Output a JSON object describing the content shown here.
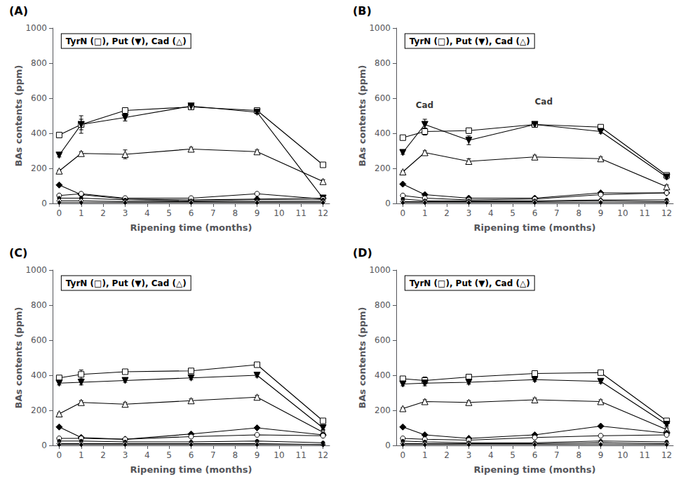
{
  "chart_data": [
    {
      "type": "line",
      "title": "(A)",
      "xlabel": "Ripening time (months)",
      "ylabel": "BAs contents (ppm)",
      "color": "#000000",
      "grid": false,
      "xlim": [
        -0.3,
        12.3
      ],
      "xticks": [
        0,
        1,
        2,
        3,
        4,
        5,
        6,
        7,
        8,
        9,
        10,
        11,
        12
      ],
      "ylim": [
        0,
        1000
      ],
      "yticks": [
        0,
        200,
        400,
        600,
        800,
        1000
      ],
      "x": [
        0,
        1,
        3,
        6,
        9,
        12
      ],
      "series": [
        {
          "marker": "square-open",
          "values": [
            390,
            450,
            530,
            550,
            530,
            220
          ],
          "errors": [
            10,
            30,
            15,
            10,
            10,
            10
          ]
        },
        {
          "marker": "triangle-down",
          "values": [
            275,
            450,
            490,
            555,
            520,
            30
          ],
          "errors": [
            10,
            50,
            20,
            10,
            10,
            5
          ]
        },
        {
          "marker": "triangle-open",
          "values": [
            185,
            285,
            280,
            310,
            295,
            125
          ],
          "errors": [
            5,
            10,
            25,
            10,
            10,
            10
          ]
        },
        {
          "marker": "diamond",
          "values": [
            105,
            50,
            25,
            20,
            25,
            30
          ]
        },
        {
          "marker": "circle-open",
          "values": [
            45,
            55,
            30,
            30,
            55,
            25
          ]
        },
        {
          "marker": "circle",
          "values": [
            30,
            30,
            20,
            15,
            20,
            20
          ]
        },
        {
          "marker": "diamond-open",
          "values": [
            15,
            15,
            10,
            10,
            10,
            10
          ]
        },
        {
          "marker": "thin-diamond",
          "values": [
            5,
            5,
            5,
            5,
            5,
            5
          ]
        }
      ],
      "annotations": [
        {
          "text": "TyrN (□), Put (▼), Cad (△)"
        }
      ]
    },
    {
      "type": "line",
      "title": "(B)",
      "xlabel": "Ripening time (months)",
      "ylabel": "BAs contents (ppm)",
      "color": "#000000",
      "grid": false,
      "xlim": [
        -0.3,
        12.3
      ],
      "xticks": [
        0,
        1,
        2,
        3,
        4,
        5,
        6,
        7,
        8,
        9,
        10,
        11,
        12
      ],
      "ylim": [
        0,
        1000
      ],
      "yticks": [
        0,
        200,
        400,
        600,
        800,
        1000
      ],
      "x": [
        0,
        1,
        3,
        6,
        9,
        12
      ],
      "series": [
        {
          "marker": "square-open",
          "values": [
            375,
            410,
            415,
            450,
            435,
            160
          ],
          "errors": [
            10,
            20,
            15,
            10,
            10,
            10
          ]
        },
        {
          "marker": "triangle-down",
          "values": [
            290,
            450,
            360,
            450,
            410,
            150
          ],
          "errors": [
            10,
            30,
            25,
            10,
            10,
            10
          ]
        },
        {
          "marker": "triangle-open",
          "values": [
            180,
            290,
            240,
            265,
            255,
            95
          ],
          "errors": [
            5,
            10,
            15,
            10,
            10,
            10
          ]
        },
        {
          "marker": "diamond",
          "values": [
            110,
            50,
            30,
            30,
            60,
            60
          ]
        },
        {
          "marker": "circle-open",
          "values": [
            45,
            30,
            20,
            25,
            50,
            60
          ]
        },
        {
          "marker": "circle",
          "values": [
            25,
            15,
            15,
            15,
            20,
            20
          ]
        },
        {
          "marker": "diamond-open",
          "values": [
            10,
            10,
            10,
            10,
            15,
            10
          ]
        },
        {
          "marker": "thin-diamond",
          "values": [
            5,
            5,
            5,
            5,
            5,
            5
          ]
        }
      ],
      "annotations": [
        {
          "text": "TyrN (□), Put (▼), Cad (△)"
        },
        {
          "text": "Cad",
          "y": 580
        },
        {
          "text": "Cad",
          "y": 560
        }
      ]
    },
    {
      "type": "line",
      "title": "(C)",
      "xlabel": "Ripening time (months)",
      "ylabel": "BAs contents (ppm)",
      "color": "#000000",
      "grid": false,
      "xlim": [
        -0.3,
        12.3
      ],
      "xticks": [
        0,
        1,
        2,
        3,
        4,
        5,
        6,
        7,
        8,
        9,
        10,
        11,
        12
      ],
      "ylim": [
        0,
        1000
      ],
      "yticks": [
        0,
        200,
        400,
        600,
        800,
        1000
      ],
      "x": [
        0,
        1,
        3,
        6,
        9,
        12
      ],
      "series": [
        {
          "marker": "square-open",
          "values": [
            385,
            405,
            420,
            425,
            460,
            140
          ],
          "errors": [
            10,
            25,
            10,
            10,
            10,
            10
          ]
        },
        {
          "marker": "triangle-down",
          "values": [
            355,
            360,
            370,
            385,
            400,
            100
          ],
          "errors": [
            10,
            15,
            10,
            10,
            10,
            10
          ]
        },
        {
          "marker": "triangle-open",
          "values": [
            180,
            245,
            235,
            255,
            275,
            75
          ],
          "errors": [
            5,
            10,
            10,
            10,
            10,
            10
          ]
        },
        {
          "marker": "diamond",
          "values": [
            105,
            45,
            35,
            65,
            100,
            60
          ]
        },
        {
          "marker": "circle-open",
          "values": [
            40,
            40,
            35,
            50,
            60,
            55
          ]
        },
        {
          "marker": "circle",
          "values": [
            25,
            25,
            20,
            20,
            25,
            15
          ]
        },
        {
          "marker": "diamond-open",
          "values": [
            10,
            10,
            10,
            10,
            10,
            5
          ]
        },
        {
          "marker": "thin-diamond",
          "values": [
            5,
            5,
            5,
            5,
            5,
            5
          ]
        }
      ],
      "annotations": [
        {
          "text": "TyrN (□), Put (▼), Cad (△)"
        }
      ]
    },
    {
      "type": "line",
      "title": "(D)",
      "xlabel": "Ripening time (months)",
      "ylabel": "BAs contents (ppm)",
      "color": "#000000",
      "grid": false,
      "xlim": [
        -0.3,
        12.3
      ],
      "xticks": [
        0,
        1,
        2,
        3,
        4,
        5,
        6,
        7,
        8,
        9,
        10,
        11,
        12
      ],
      "ylim": [
        0,
        1000
      ],
      "yticks": [
        0,
        200,
        400,
        600,
        800,
        1000
      ],
      "x": [
        0,
        1,
        3,
        6,
        9,
        12
      ],
      "series": [
        {
          "marker": "square-open",
          "values": [
            380,
            370,
            390,
            410,
            415,
            140
          ],
          "errors": [
            10,
            20,
            10,
            10,
            10,
            10
          ]
        },
        {
          "marker": "triangle-down",
          "values": [
            350,
            355,
            360,
            375,
            365,
            120
          ],
          "errors": [
            10,
            15,
            10,
            10,
            10,
            10
          ]
        },
        {
          "marker": "triangle-open",
          "values": [
            210,
            250,
            245,
            260,
            250,
            90
          ],
          "errors": [
            5,
            10,
            10,
            10,
            10,
            10
          ]
        },
        {
          "marker": "diamond",
          "values": [
            105,
            60,
            40,
            60,
            110,
            70
          ]
        },
        {
          "marker": "circle-open",
          "values": [
            40,
            35,
            30,
            45,
            55,
            60
          ]
        },
        {
          "marker": "circle",
          "values": [
            25,
            20,
            15,
            15,
            25,
            20
          ]
        },
        {
          "marker": "diamond-open",
          "values": [
            10,
            10,
            10,
            10,
            15,
            10
          ]
        },
        {
          "marker": "thin-diamond",
          "values": [
            5,
            5,
            5,
            5,
            5,
            5
          ]
        }
      ],
      "annotations": [
        {
          "text": "TyrN (□), Put (▼), Cad (△)"
        }
      ]
    }
  ]
}
